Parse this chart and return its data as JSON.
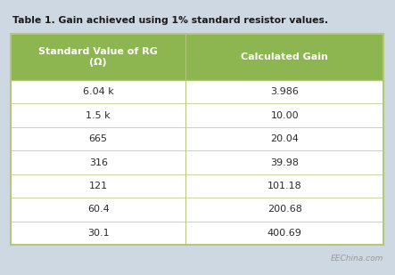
{
  "title": "Table 1. Gain achieved using 1% standard resistor values.",
  "col1_header": "Standard Value of RG\n(Ω)",
  "col2_header": "Calculated Gain",
  "rows": [
    [
      "6.04 k",
      "3.986"
    ],
    [
      "1.5 k",
      "10.00"
    ],
    [
      "665",
      "20.04"
    ],
    [
      "316",
      "39.98"
    ],
    [
      "121",
      "101.18"
    ],
    [
      "60.4",
      "200.68"
    ],
    [
      "30.1",
      "400.69"
    ]
  ],
  "header_bg": "#8db550",
  "header_text": "#ffffff",
  "row_bg": "#ffffff",
  "row_text": "#2a2a2a",
  "outer_bg": "#cdd8e2",
  "title_color": "#1a1a1a",
  "border_color": "#b5c87a",
  "watermark": "EEChina.com",
  "watermark_color": "#999999",
  "title_fontsize": 7.8,
  "header_fontsize": 8.0,
  "data_fontsize": 8.0,
  "col_split": 0.47
}
